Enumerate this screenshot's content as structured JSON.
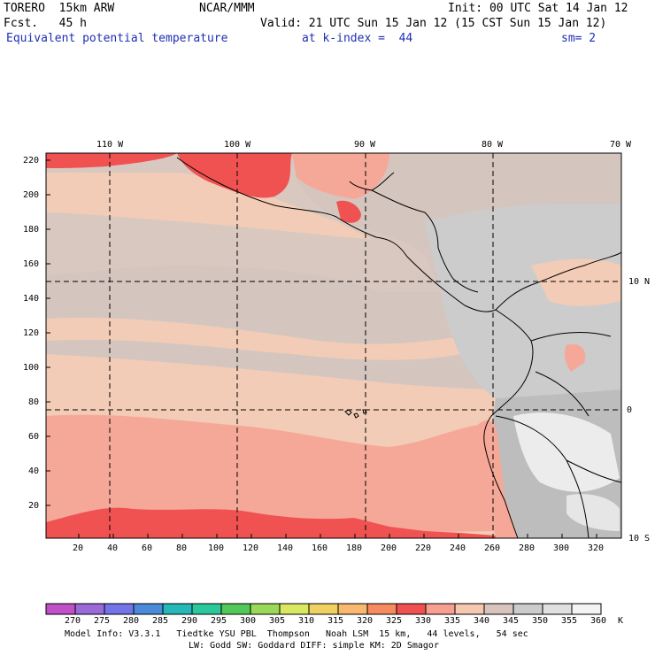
{
  "header": {
    "model": "TORERO  15km ARW",
    "org": "NCAR/MMM",
    "init": "Init: 00 UTC Sat 14 Jan 12",
    "forecast": "Fcst.   45 h",
    "valid": "Valid: 21 UTC Sun 15 Jan 12 (15 CST Sun 15 Jan 12)",
    "field": "Equivalent potential temperature",
    "level": "at k-index =  44",
    "smoothing": "sm= 2"
  },
  "axes": {
    "top_lon_labels": [
      "110 W",
      "100 W",
      "90 W",
      "80 W",
      "70 W"
    ],
    "right_lat_labels": [
      "10 N",
      "0",
      "10 S"
    ],
    "left_ticks": [
      "220",
      "200",
      "180",
      "160",
      "140",
      "120",
      "100",
      "80",
      "60",
      "40",
      "20"
    ],
    "bottom_ticks": [
      "20",
      "40",
      "60",
      "80",
      "100",
      "120",
      "140",
      "160",
      "180",
      "200",
      "220",
      "240",
      "260",
      "280",
      "300",
      "320"
    ]
  },
  "colorbar": {
    "labels": [
      "270",
      "275",
      "280",
      "285",
      "290",
      "295",
      "300",
      "305",
      "310",
      "315",
      "320",
      "325",
      "330",
      "335",
      "340",
      "345",
      "350",
      "355",
      "360"
    ],
    "unit": "K",
    "colors": [
      "#c050c8",
      "#9a6ad8",
      "#7474e8",
      "#4a8ad8",
      "#26b8b8",
      "#2ac89a",
      "#52c85a",
      "#9ad858",
      "#d8e860",
      "#f0d060",
      "#f8b870",
      "#f88a60",
      "#f05050",
      "#f8a090",
      "#f6c8b0",
      "#d8c4bc",
      "#cccccc",
      "#e0e0e0",
      "#f4f4f4"
    ]
  },
  "model_info": {
    "line1": "Model Info: V3.3.1   Tiedtke YSU PBL  Thompson   Noah LSM  15 km,   44 levels,   54 sec",
    "line2": "LW: Godd SW: Goddard DIFF: simple KM: 2D Smagor"
  }
}
